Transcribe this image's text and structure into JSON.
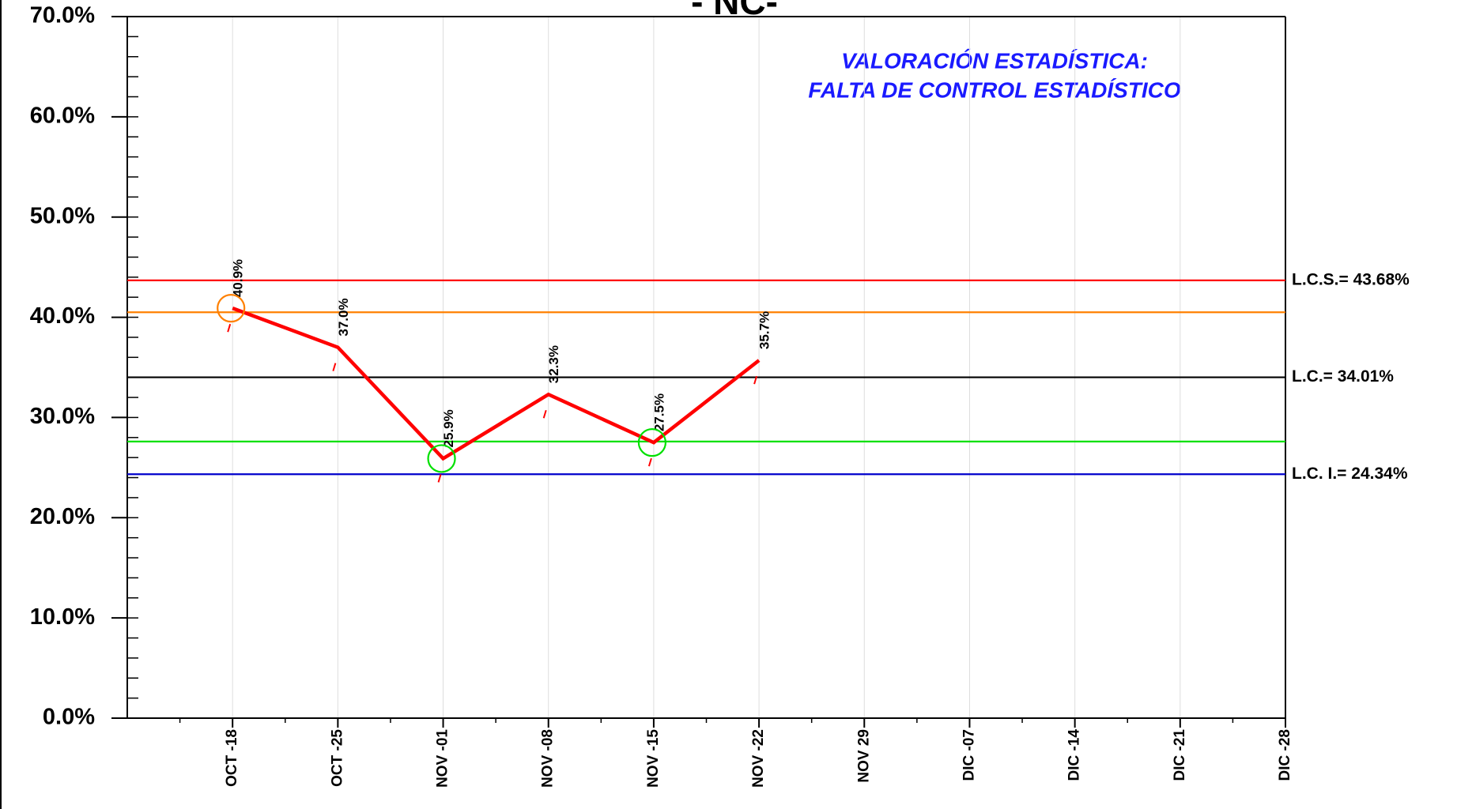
{
  "chart_data": {
    "type": "line",
    "title": "- NC-",
    "annotation": [
      "VALORACIÓN ESTADÍSTICA:",
      "FALTA DE CONTROL ESTADÍSTICO"
    ],
    "categories": [
      "OCT -18",
      "OCT -25",
      "NOV -01",
      "NOV -08",
      "NOV -15",
      "NOV -22",
      "NOV 29",
      "DIC -07",
      "DIC -14",
      "DIC -21",
      "DIC -28"
    ],
    "series": [
      {
        "color": "#ff0000",
        "values": [
          40.9,
          37.0,
          25.9,
          32.3,
          27.5,
          35.7,
          null,
          null,
          null,
          null,
          null
        ],
        "value_labels": [
          "40.9%",
          "37.0%",
          "25.9%",
          "32.3%",
          "27.5%",
          "35.7%",
          null,
          null,
          null,
          null,
          null
        ]
      }
    ],
    "circled": [
      {
        "index": 0,
        "color": "#ff8000"
      },
      {
        "index": 2,
        "color": "#00e000"
      },
      {
        "index": 4,
        "color": "#00e000"
      }
    ],
    "reference_lines": [
      {
        "name": "L.C.S.= 43.68%",
        "value": 43.68,
        "color": "#ff0000"
      },
      {
        "value": 40.5,
        "color": "#ff8000"
      },
      {
        "name": "L.C.= 34.01%",
        "value": 34.01,
        "color": "#000000"
      },
      {
        "value": 27.6,
        "color": "#00e000"
      },
      {
        "name": "L.C. I.= 24.34%",
        "value": 24.34,
        "color": "#0000cc"
      }
    ],
    "ylim": [
      0,
      70
    ],
    "yticks": [
      {
        "value": 0,
        "label": "0.0%"
      },
      {
        "value": 10,
        "label": "10.0%"
      },
      {
        "value": 20,
        "label": "20.0%"
      },
      {
        "value": 30,
        "label": "30.0%"
      },
      {
        "value": 40,
        "label": "40.0%"
      },
      {
        "value": 50,
        "label": "50.0%"
      },
      {
        "value": 60,
        "label": "60.0%"
      },
      {
        "value": 70,
        "label": "70.0%"
      }
    ],
    "annotation_color": "#1a1aff",
    "grid": true
  }
}
